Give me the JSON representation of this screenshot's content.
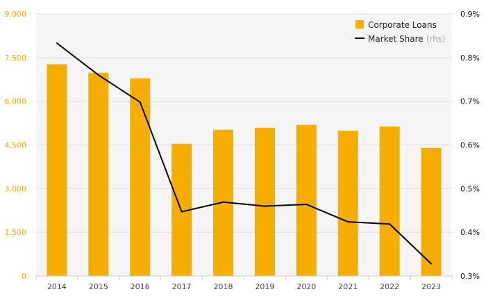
{
  "chart_data": {
    "type": "bar",
    "categories": [
      "2014",
      "2015",
      "2016",
      "2017",
      "2018",
      "2019",
      "2020",
      "2021",
      "2022",
      "2023"
    ],
    "series": [
      {
        "name": "Corporate Loans",
        "type": "bar",
        "axis": "left",
        "color": "#f5ad00",
        "values": [
          7270,
          6980,
          6790,
          4540,
          5020,
          5090,
          5190,
          4990,
          5130,
          4400
        ]
      },
      {
        "name": "Market Share",
        "name_note": "(rhs)",
        "type": "line",
        "axis": "right",
        "color": "#000000",
        "values": [
          0.833,
          0.76,
          0.698,
          0.447,
          0.469,
          0.46,
          0.464,
          0.424,
          0.419,
          0.328
        ]
      }
    ],
    "y_left": {
      "range": [
        0,
        9000
      ],
      "ticks": [
        0,
        1500,
        3000,
        4500,
        6000,
        7500,
        9000
      ],
      "tick_labels": [
        "0",
        "1,500",
        "3,000",
        "4,500",
        "6,000",
        "7,500",
        "9,000"
      ],
      "color": "#f5a800"
    },
    "y_right": {
      "range": [
        0.3,
        0.9
      ],
      "ticks": [
        0.3,
        0.4,
        0.5,
        0.6,
        0.7,
        0.8,
        0.9
      ],
      "tick_labels": [
        "0.3%",
        "0.4%",
        "0.5%",
        "0.6%",
        "0.7%",
        "0.8%",
        "0.9%"
      ]
    },
    "grid": "horizontal",
    "background": "#f5f5f5",
    "legend_position": "top-right"
  }
}
